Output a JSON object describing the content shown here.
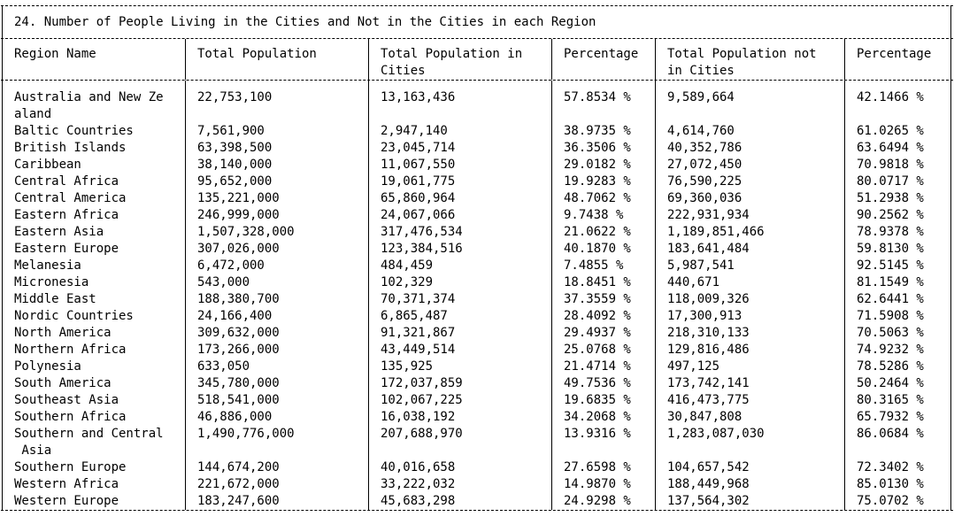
{
  "table_title": "24. Number of People Living in the Cities and Not in the Cities in each Region",
  "headers": [
    [
      "Region Name",
      ""
    ],
    [
      "Total Population",
      ""
    ],
    [
      "Total Population in",
      "Cities"
    ],
    [
      "Percentage",
      ""
    ],
    [
      "Total Population not",
      "in Cities"
    ],
    [
      "Percentage",
      ""
    ]
  ],
  "rows": [
    {
      "lines": [
        [
          "Australia and New Ze",
          "22,753,100",
          "13,163,436",
          "57.8534 %",
          "9,589,664",
          "42.1466 %"
        ],
        [
          "aland",
          "",
          "",
          "",
          "",
          ""
        ]
      ]
    },
    {
      "lines": [
        [
          "Baltic Countries",
          "7,561,900",
          "2,947,140",
          "38.9735 %",
          "4,614,760",
          "61.0265 %"
        ]
      ]
    },
    {
      "lines": [
        [
          "British Islands",
          "63,398,500",
          "23,045,714",
          "36.3506 %",
          "40,352,786",
          "63.6494 %"
        ]
      ]
    },
    {
      "lines": [
        [
          "Caribbean",
          "38,140,000",
          "11,067,550",
          "29.0182 %",
          "27,072,450",
          "70.9818 %"
        ]
      ]
    },
    {
      "lines": [
        [
          "Central Africa",
          "95,652,000",
          "19,061,775",
          "19.9283 %",
          "76,590,225",
          "80.0717 %"
        ]
      ]
    },
    {
      "lines": [
        [
          "Central America",
          "135,221,000",
          "65,860,964",
          "48.7062 %",
          "69,360,036",
          "51.2938 %"
        ]
      ]
    },
    {
      "lines": [
        [
          "Eastern Africa",
          "246,999,000",
          "24,067,066",
          "9.7438 %",
          "222,931,934",
          "90.2562 %"
        ]
      ]
    },
    {
      "lines": [
        [
          "Eastern Asia",
          "1,507,328,000",
          "317,476,534",
          "21.0622 %",
          "1,189,851,466",
          "78.9378 %"
        ]
      ]
    },
    {
      "lines": [
        [
          "Eastern Europe",
          "307,026,000",
          "123,384,516",
          "40.1870 %",
          "183,641,484",
          "59.8130 %"
        ]
      ]
    },
    {
      "lines": [
        [
          "Melanesia",
          "6,472,000",
          "484,459",
          "7.4855 %",
          "5,987,541",
          "92.5145 %"
        ]
      ]
    },
    {
      "lines": [
        [
          "Micronesia",
          "543,000",
          "102,329",
          "18.8451 %",
          "440,671",
          "81.1549 %"
        ]
      ]
    },
    {
      "lines": [
        [
          "Middle East",
          "188,380,700",
          "70,371,374",
          "37.3559 %",
          "118,009,326",
          "62.6441 %"
        ]
      ]
    },
    {
      "lines": [
        [
          "Nordic Countries",
          "24,166,400",
          "6,865,487",
          "28.4092 %",
          "17,300,913",
          "71.5908 %"
        ]
      ]
    },
    {
      "lines": [
        [
          "North America",
          "309,632,000",
          "91,321,867",
          "29.4937 %",
          "218,310,133",
          "70.5063 %"
        ]
      ]
    },
    {
      "lines": [
        [
          "Northern Africa",
          "173,266,000",
          "43,449,514",
          "25.0768 %",
          "129,816,486",
          "74.9232 %"
        ]
      ]
    },
    {
      "lines": [
        [
          "Polynesia",
          "633,050",
          "135,925",
          "21.4714 %",
          "497,125",
          "78.5286 %"
        ]
      ]
    },
    {
      "lines": [
        [
          "South America",
          "345,780,000",
          "172,037,859",
          "49.7536 %",
          "173,742,141",
          "50.2464 %"
        ]
      ]
    },
    {
      "lines": [
        [
          "Southeast Asia",
          "518,541,000",
          "102,067,225",
          "19.6835 %",
          "416,473,775",
          "80.3165 %"
        ]
      ]
    },
    {
      "lines": [
        [
          "Southern Africa",
          "46,886,000",
          "16,038,192",
          "34.2068 %",
          "30,847,808",
          "65.7932 %"
        ]
      ]
    },
    {
      "lines": [
        [
          "Southern and Central",
          "1,490,776,000",
          "207,688,970",
          "13.9316 %",
          "1,283,087,030",
          "86.0684 %"
        ],
        [
          " Asia",
          "",
          "",
          "",
          "",
          ""
        ]
      ]
    },
    {
      "lines": [
        [
          "Southern Europe",
          "144,674,200",
          "40,016,658",
          "27.6598 %",
          "104,657,542",
          "72.3402 %"
        ]
      ]
    },
    {
      "lines": [
        [
          "Western Africa",
          "221,672,000",
          "33,222,032",
          "14.9870 %",
          "188,449,968",
          "85.0130 %"
        ]
      ]
    },
    {
      "lines": [
        [
          "Western Europe",
          "183,247,600",
          "45,683,298",
          "24.9298 %",
          "137,564,302",
          "75.0702 %"
        ]
      ]
    }
  ]
}
